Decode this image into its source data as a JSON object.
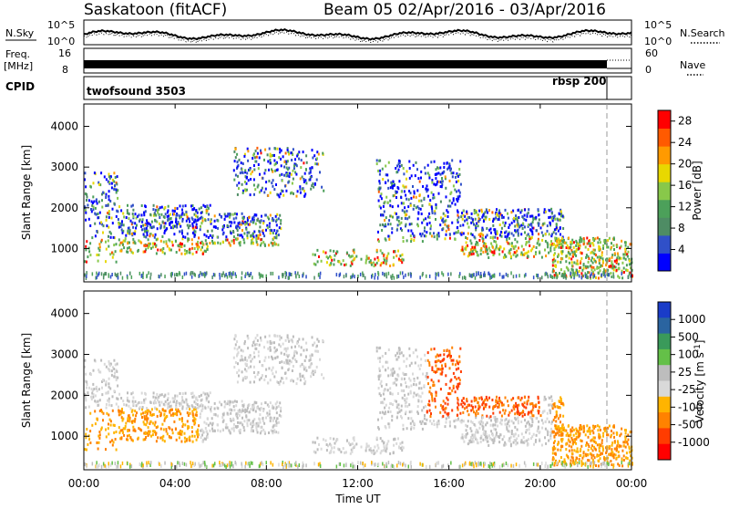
{
  "header": {
    "radar_title": "Saskatoon (fitACF)",
    "beam_date": "Beam 05   02/Apr/2016 - 03/Apr/2016"
  },
  "status_panels": {
    "nsky_label": "N.Sky",
    "nsearch_label": "N.Search",
    "nsky_ticks": [
      "10^5",
      "10^0"
    ],
    "nsearch_ticks": [
      "10^5",
      "10^0"
    ],
    "freq_label_top": "Freq.",
    "freq_label_bottom": "[MHz]",
    "freq_ticks": [
      "16",
      "8"
    ],
    "nave_label": "Nave",
    "nave_ticks": [
      "60",
      "0"
    ],
    "cpid_label": "CPID",
    "cpid_mode_1": "twofsound 3503",
    "cpid_mode_2": "rbsp 200"
  },
  "colors": {
    "power_scale": [
      "#0000ff",
      "#3050c8",
      "#4e8c64",
      "#4ca05a",
      "#88c84a",
      "#e8d800",
      "#ff9a00",
      "#ff5a00",
      "#ff0000"
    ],
    "velocity_scale": [
      "#1a3cc8",
      "#2a64a0",
      "#3a9a5a",
      "#64c048",
      "#bdbdbd",
      "#d9d9d9",
      "#ffb400",
      "#ff8200",
      "#ff3c00",
      "#ff0000"
    ]
  },
  "chart_data": [
    {
      "type": "heatmap",
      "name": "power",
      "ylabel": "Slant Range [km]",
      "xlabel": "",
      "x_ticks": [
        "00:00",
        "04:00",
        "08:00",
        "12:00",
        "16:00",
        "20:00",
        "00:00"
      ],
      "x_range_hours": [
        0,
        24
      ],
      "y_ticks": [
        1000,
        2000,
        3000,
        4000
      ],
      "ylim": [
        180,
        4550
      ],
      "colorbar": {
        "label": "Power [dB]",
        "ticks": [
          "4",
          "8",
          "12",
          "16",
          "20",
          "24",
          "28"
        ],
        "range": [
          0,
          30
        ]
      }
    },
    {
      "type": "heatmap",
      "name": "velocity",
      "ylabel": "Slant Range [km]",
      "xlabel": "Time UT",
      "x_ticks": [
        "00:00",
        "04:00",
        "08:00",
        "12:00",
        "16:00",
        "20:00",
        "00:00"
      ],
      "x_range_hours": [
        0,
        24
      ],
      "y_ticks": [
        1000,
        2000,
        3000,
        4000
      ],
      "ylim": [
        180,
        4550
      ],
      "colorbar": {
        "label": "Velocity [m s^-1]",
        "ticks": [
          "1000",
          "500",
          "100",
          "25",
          "-25",
          "-100",
          "-500",
          "-1000"
        ]
      }
    }
  ]
}
